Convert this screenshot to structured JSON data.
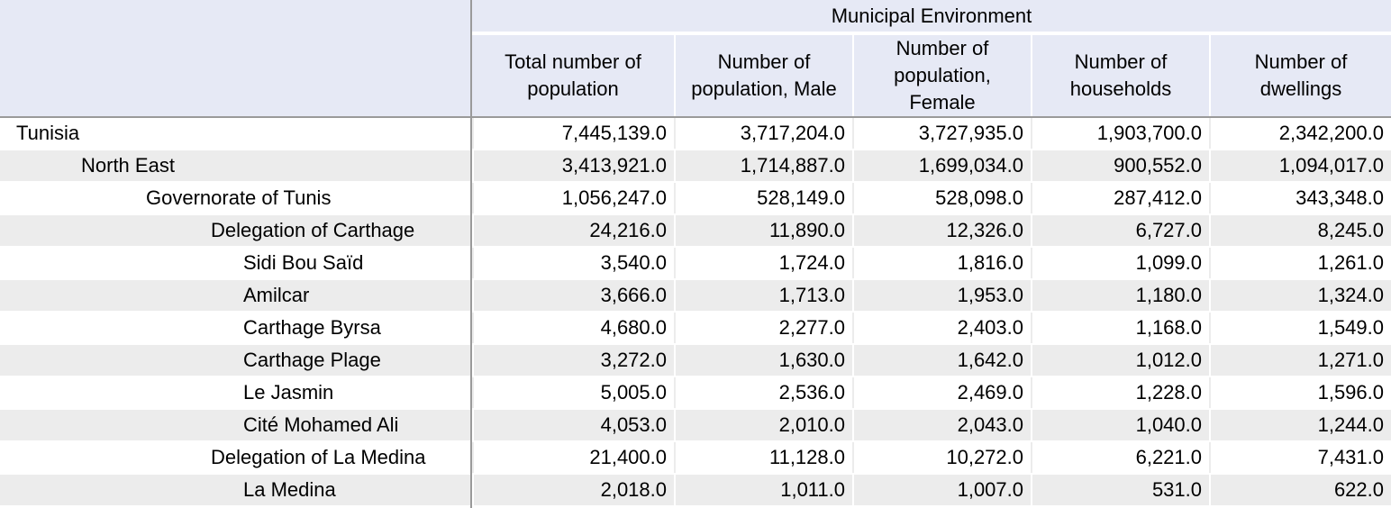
{
  "header": {
    "group_label": "Municipal Environment",
    "columns": [
      {
        "line1": "Total number of",
        "line2": "population",
        "line3": ""
      },
      {
        "line1": "Number of",
        "line2": "population, Male",
        "line3": ""
      },
      {
        "line1": "Number of",
        "line2": "population,",
        "line3": "Female"
      },
      {
        "line1": "Number of",
        "line2": "households",
        "line3": ""
      },
      {
        "line1": "Number of",
        "line2": "dwellings",
        "line3": ""
      }
    ]
  },
  "rows": [
    {
      "label": "Tunisia",
      "level": 0,
      "values": [
        "7,445,139.0",
        "3,717,204.0",
        "3,727,935.0",
        "1,903,700.0",
        "2,342,200.0"
      ]
    },
    {
      "label": "North East",
      "level": 1,
      "values": [
        "3,413,921.0",
        "1,714,887.0",
        "1,699,034.0",
        "900,552.0",
        "1,094,017.0"
      ]
    },
    {
      "label": "Governorate of Tunis",
      "level": 2,
      "values": [
        "1,056,247.0",
        "528,149.0",
        "528,098.0",
        "287,412.0",
        "343,348.0"
      ]
    },
    {
      "label": "Delegation of Carthage",
      "level": 3,
      "values": [
        "24,216.0",
        "11,890.0",
        "12,326.0",
        "6,727.0",
        "8,245.0"
      ]
    },
    {
      "label": "Sidi Bou Saïd",
      "level": 4,
      "values": [
        "3,540.0",
        "1,724.0",
        "1,816.0",
        "1,099.0",
        "1,261.0"
      ]
    },
    {
      "label": "Amilcar",
      "level": 4,
      "values": [
        "3,666.0",
        "1,713.0",
        "1,953.0",
        "1,180.0",
        "1,324.0"
      ]
    },
    {
      "label": "Carthage Byrsa",
      "level": 4,
      "values": [
        "4,680.0",
        "2,277.0",
        "2,403.0",
        "1,168.0",
        "1,549.0"
      ]
    },
    {
      "label": "Carthage Plage",
      "level": 4,
      "values": [
        "3,272.0",
        "1,630.0",
        "1,642.0",
        "1,012.0",
        "1,271.0"
      ]
    },
    {
      "label": "Le Jasmin",
      "level": 4,
      "values": [
        "5,005.0",
        "2,536.0",
        "2,469.0",
        "1,228.0",
        "1,596.0"
      ]
    },
    {
      "label": "Cité Mohamed Ali",
      "level": 4,
      "values": [
        "4,053.0",
        "2,010.0",
        "2,043.0",
        "1,040.0",
        "1,244.0"
      ]
    },
    {
      "label": "Delegation of La Medina",
      "level": 3,
      "values": [
        "21,400.0",
        "11,128.0",
        "10,272.0",
        "6,221.0",
        "7,431.0"
      ]
    },
    {
      "label": "La Medina",
      "level": 4,
      "values": [
        "2,018.0",
        "1,011.0",
        "1,007.0",
        "531.0",
        "622.0"
      ]
    }
  ]
}
